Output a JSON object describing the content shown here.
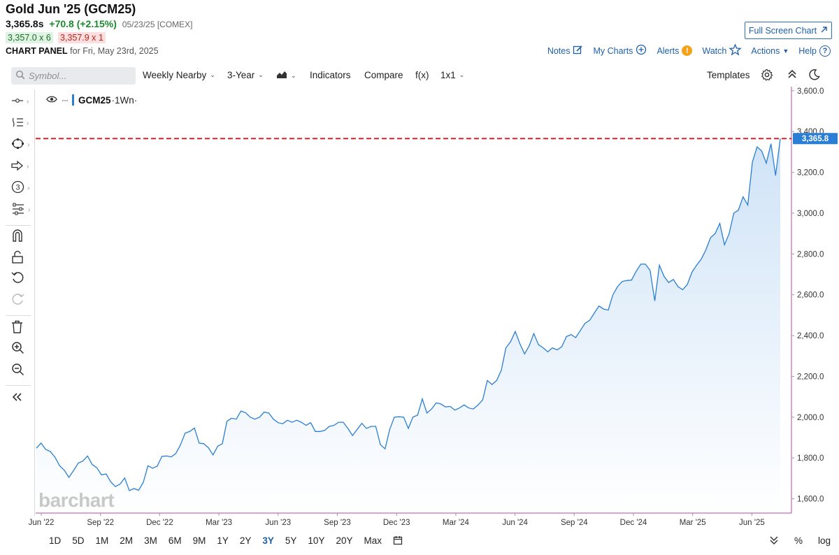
{
  "header": {
    "title": "Gold Jun '25 (GCM25)",
    "last": "3,365.8s",
    "change": "+70.8 (+2.15%)",
    "meta": "05/23/25 [COMEX]",
    "bid": "3,357.0 x 6",
    "ask": "3,357.9 x 1",
    "panel_label": "CHART PANEL",
    "panel_date": "for Fri, May 23rd, 2025",
    "fullscreen_label": "Full Screen Chart"
  },
  "top_links": {
    "notes": "Notes",
    "my_charts": "My Charts",
    "alerts": "Alerts",
    "watch": "Watch",
    "actions": "Actions",
    "help": "Help"
  },
  "toolbar": {
    "symbol_placeholder": "Symbol...",
    "nearby": "Weekly Nearby",
    "range": "3-Year",
    "indicators": "Indicators",
    "compare": "Compare",
    "fx": "f(x)",
    "layout": "1x1",
    "templates": "Templates"
  },
  "legend": {
    "symbol": "GCM25",
    "interval": "·1Wn·"
  },
  "watermark": "barchart",
  "periods": [
    "1D",
    "5D",
    "1M",
    "2M",
    "3M",
    "6M",
    "9M",
    "1Y",
    "2Y",
    "3Y",
    "5Y",
    "10Y",
    "20Y",
    "Max"
  ],
  "active_period": "3Y",
  "bottom_right": {
    "percent": "%",
    "log": "log"
  },
  "colors": {
    "line": "#2a7fd4",
    "fill_top": "#cfe3f7",
    "last_price_line": "#e0212b",
    "price_tag": "#2a7fd4",
    "axis_border": "#b04aa8",
    "positive": "#1a8a2e"
  },
  "chart_data": {
    "type": "area",
    "x_tick_labels": [
      "Jun '22",
      "Sep '22",
      "Dec '22",
      "Mar '23",
      "Jun '23",
      "Sep '23",
      "Dec '23",
      "Mar '24",
      "Jun '24",
      "Sep '24",
      "Dec '24",
      "Mar '25",
      "Jun '25"
    ],
    "y_tick_labels": [
      "1,600.0",
      "1,800.0",
      "2,000.0",
      "2,200.0",
      "2,400.0",
      "2,600.0",
      "2,800.0",
      "3,000.0",
      "3,200.0",
      "3,400.0",
      "3,600.0"
    ],
    "ylim": [
      1530,
      3620
    ],
    "last_price": 3365.8,
    "last_price_label": "3,365.8",
    "values": [
      1848,
      1873,
      1842,
      1832,
      1804,
      1762,
      1740,
      1705,
      1738,
      1775,
      1785,
      1810,
      1768,
      1752,
      1717,
      1722,
      1683,
      1660,
      1672,
      1702,
      1640,
      1650,
      1642,
      1680,
      1762,
      1750,
      1760,
      1808,
      1810,
      1805,
      1822,
      1865,
      1922,
      1930,
      1947,
      1873,
      1870,
      1850,
      1815,
      1858,
      1870,
      1980,
      1995,
      1990,
      2030,
      2022,
      2000,
      1990,
      2000,
      2025,
      2020,
      1990,
      1973,
      1968,
      1985,
      1975,
      1985,
      1975,
      1960,
      1973,
      1930,
      1930,
      1935,
      1955,
      1960,
      1975,
      1975,
      1945,
      1910,
      1940,
      1970,
      1945,
      1955,
      1955,
      1865,
      1845,
      1940,
      2000,
      2002,
      2000,
      1945,
      2000,
      2010,
      2090,
      2020,
      2040,
      2070,
      2065,
      2050,
      2053,
      2035,
      2045,
      2060,
      2045,
      2040,
      2060,
      2085,
      2180,
      2160,
      2180,
      2230,
      2340,
      2370,
      2420,
      2360,
      2310,
      2350,
      2410,
      2355,
      2340,
      2320,
      2340,
      2330,
      2345,
      2395,
      2405,
      2390,
      2425,
      2460,
      2475,
      2510,
      2545,
      2530,
      2525,
      2600,
      2640,
      2665,
      2670,
      2672,
      2715,
      2750,
      2750,
      2720,
      2570,
      2745,
      2690,
      2660,
      2675,
      2640,
      2625,
      2650,
      2710,
      2745,
      2775,
      2820,
      2880,
      2900,
      2950,
      2845,
      2900,
      3000,
      3015,
      3080,
      3040,
      3250,
      3325,
      3305,
      3245,
      3340,
      3185,
      3365.8
    ]
  }
}
